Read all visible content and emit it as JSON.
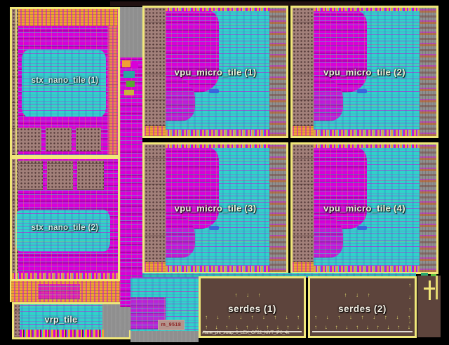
{
  "view": {
    "description_label": "chip floorplan view",
    "background": "#000000"
  },
  "tiles": [
    {
      "id": "stx_nano_tile_1",
      "label": "stx_nano_tile (1)"
    },
    {
      "id": "stx_nano_tile_2",
      "label": "stx_nano_tile (2)"
    },
    {
      "id": "vpu_micro_tile_1",
      "label": "vpu_micro_tile (1)"
    },
    {
      "id": "vpu_micro_tile_2",
      "label": "vpu_micro_tile (2)"
    },
    {
      "id": "vpu_micro_tile_3",
      "label": "vpu_micro_tile (3)"
    },
    {
      "id": "vpu_micro_tile_4",
      "label": "vpu_micro_tile (4)"
    },
    {
      "id": "vrp_tile",
      "label": "vrp_tile"
    },
    {
      "id": "serdes_1",
      "label": "serdes (1)"
    },
    {
      "id": "serdes_2",
      "label": "serdes (2)"
    }
  ],
  "annotations": {
    "macro_instance_label": "m_9518",
    "serdes_footnote": "#lane_pht_swap_0_LEX_GF22_MVT_IP0_4k"
  },
  "colors": {
    "background": "#000000",
    "tile_border": "#f0e77a",
    "cell_magenta": "#d800d8",
    "cell_cyan": "#30d2ca",
    "cell_orange": "#f0a033",
    "macro_gray": "#a2807a",
    "routing_gray": "#8f8f8f",
    "serdes_brown": "#5d443c",
    "pin_yellow": "#f2e878"
  },
  "serdes_pins": {
    "serdes_1": {
      "top_count": 3,
      "mid_count": 9,
      "bottom_count": 10
    },
    "serdes_2": {
      "top_count": 3,
      "mid_count": 9,
      "bottom_count": 10,
      "side_count": 4
    }
  }
}
